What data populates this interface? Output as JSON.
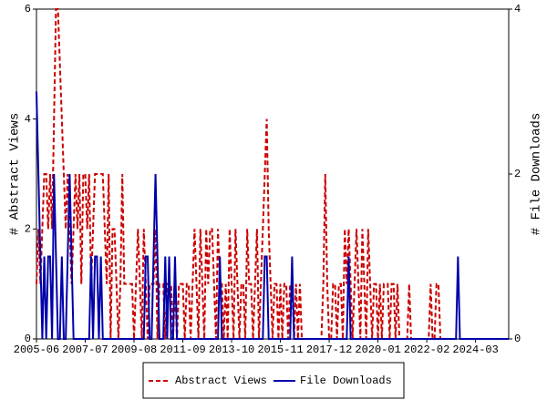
{
  "chart_data": {
    "type": "line",
    "categories": [
      "2005-06",
      null,
      null,
      null,
      null,
      null,
      null,
      null,
      null,
      null,
      null,
      null,
      null,
      null,
      null,
      null,
      null,
      null,
      null,
      null,
      null,
      null,
      null,
      null,
      null,
      "2007-07",
      null,
      null,
      null,
      null,
      null,
      null,
      null,
      null,
      null,
      null,
      null,
      null,
      null,
      null,
      null,
      null,
      null,
      null,
      null,
      null,
      null,
      null,
      null,
      null,
      "2009-08",
      null,
      null,
      null,
      null,
      null,
      null,
      null,
      null,
      null,
      null,
      null,
      null,
      null,
      null,
      null,
      null,
      null,
      null,
      null,
      null,
      null,
      null,
      null,
      null,
      "2011-09",
      null,
      null,
      null,
      null,
      null,
      null,
      null,
      null,
      null,
      null,
      null,
      null,
      null,
      null,
      null,
      null,
      null,
      null,
      null,
      null,
      null,
      null,
      null,
      null,
      "2013-10",
      null,
      null,
      null,
      null,
      null,
      null,
      null,
      null,
      null,
      null,
      null,
      null,
      null,
      null,
      null,
      null,
      null,
      null,
      null,
      null,
      null,
      null,
      null,
      null,
      "2015-11",
      null,
      null,
      null,
      null,
      null,
      null,
      null,
      null,
      null,
      null,
      null,
      null,
      null,
      null,
      null,
      null,
      null,
      null,
      null,
      null,
      null,
      null,
      null,
      null,
      "2017-12",
      null,
      null,
      null,
      null,
      null,
      null,
      null,
      null,
      null,
      null,
      null,
      null,
      null,
      null,
      null,
      null,
      null,
      null,
      null,
      null,
      null,
      null,
      null,
      null,
      "2020-01",
      null,
      null,
      null,
      null,
      null,
      null,
      null,
      null,
      null,
      null,
      null,
      null,
      null,
      null,
      null,
      null,
      null,
      null,
      null,
      null,
      null,
      null,
      null,
      null,
      "2022-02",
      null,
      null,
      null,
      null,
      null,
      null,
      null,
      null,
      null,
      null,
      null,
      null,
      null,
      null,
      null,
      null,
      null,
      null,
      null,
      null,
      null,
      null,
      null,
      null,
      "2024-03",
      null,
      null,
      null,
      null,
      null,
      null,
      null,
      null,
      null,
      null,
      null,
      null,
      null,
      null,
      null,
      null,
      null
    ],
    "series": [
      {
        "name": "Abstract Views",
        "color": "#cc0000",
        "axis": "y",
        "dashed": true,
        "values": [
          1,
          2,
          1,
          2,
          3,
          3,
          2,
          3,
          2,
          4,
          6,
          6,
          5,
          4,
          3,
          2,
          3,
          2,
          1,
          2,
          3,
          2,
          3,
          1,
          3,
          3,
          2,
          3,
          1,
          2,
          3,
          3,
          3,
          3,
          3,
          2,
          1,
          3,
          0,
          2,
          2,
          1,
          0,
          1,
          3,
          1,
          1,
          1,
          1,
          1,
          0,
          1,
          2,
          1,
          0,
          2,
          1,
          0,
          1,
          1,
          1,
          2,
          0,
          1,
          1,
          1,
          0,
          1,
          1,
          1,
          0,
          1,
          0,
          1,
          1,
          1,
          0,
          1,
          1,
          0,
          1,
          2,
          1,
          0,
          2,
          1,
          0,
          2,
          1,
          2,
          2,
          1,
          0,
          2,
          1,
          1,
          0,
          1,
          0,
          2,
          1,
          0,
          2,
          1,
          0,
          1,
          1,
          0,
          2,
          1,
          1,
          0,
          1,
          2,
          0,
          1,
          2,
          3,
          4,
          2,
          1,
          0,
          1,
          1,
          0,
          1,
          0,
          1,
          1,
          0,
          1,
          1,
          0,
          1,
          0,
          1,
          0,
          0,
          0,
          0,
          0,
          0,
          0,
          0,
          0,
          0,
          0,
          1,
          3,
          1,
          0,
          0,
          1,
          1,
          0,
          1,
          1,
          0,
          2,
          1,
          2,
          1,
          0,
          1,
          2,
          1,
          0,
          2,
          1,
          0,
          2,
          1,
          0,
          1,
          1,
          0,
          1,
          0,
          1,
          1,
          1,
          0,
          1,
          1,
          0,
          1,
          0,
          0,
          0,
          0,
          0,
          1,
          0,
          0,
          0,
          0,
          0,
          0,
          0,
          0,
          0,
          0,
          1,
          0,
          0,
          1,
          1,
          0,
          0,
          0,
          0,
          0,
          0,
          0,
          0,
          0,
          0,
          0,
          0,
          0,
          0,
          0,
          0,
          0,
          0,
          0,
          0,
          0,
          0,
          0,
          0,
          0,
          0,
          0,
          0,
          0,
          0,
          0,
          0,
          0,
          0,
          0,
          0
        ]
      },
      {
        "name": "File Downloads",
        "color": "#0000aa",
        "axis": "y2",
        "dashed": false,
        "values": [
          3,
          2,
          1,
          0,
          1,
          0,
          1,
          1,
          0,
          2,
          1,
          0,
          0,
          1,
          0,
          0,
          1,
          2,
          1,
          0,
          0,
          0,
          0,
          0,
          0,
          0,
          0,
          0,
          1,
          0,
          1,
          1,
          0,
          1,
          0,
          0,
          0,
          0,
          0,
          0,
          0,
          0,
          0,
          0,
          0,
          0,
          0,
          0,
          0,
          0,
          0,
          0,
          0,
          0,
          0,
          0,
          1,
          1,
          0,
          0,
          1,
          2,
          1,
          0,
          0,
          0,
          1,
          0,
          1,
          0,
          0,
          1,
          0,
          0,
          0,
          0,
          0,
          0,
          0,
          0,
          0,
          0,
          0,
          0,
          0,
          0,
          0,
          0,
          0,
          0,
          0,
          0,
          0,
          0,
          1,
          0,
          0,
          0,
          0,
          0,
          0,
          0,
          0,
          0,
          0,
          0,
          0,
          0,
          0,
          0,
          0,
          0,
          0,
          0,
          0,
          0,
          0,
          1,
          1,
          0,
          0,
          0,
          0,
          0,
          0,
          0,
          0,
          0,
          0,
          0,
          0,
          1,
          0,
          0,
          0,
          0,
          0,
          0,
          0,
          0,
          0,
          0,
          0,
          0,
          0,
          0,
          0,
          0,
          0,
          0,
          0,
          0,
          0,
          0,
          0,
          0,
          0,
          0,
          0,
          0,
          1,
          0,
          0,
          0,
          0,
          0,
          0,
          0,
          0,
          0,
          0,
          0,
          0,
          0,
          0,
          0,
          0,
          0,
          0,
          0,
          0,
          0,
          0,
          0,
          0,
          0,
          0,
          0,
          0,
          0,
          0,
          0,
          0,
          0,
          0,
          0,
          0,
          0,
          0,
          0,
          0,
          0,
          0,
          0,
          0,
          0,
          0,
          0,
          0,
          0,
          0,
          0,
          0,
          0,
          0,
          0,
          1,
          0,
          0,
          0,
          0,
          0,
          0,
          0,
          0,
          0,
          0,
          0,
          0,
          0,
          0,
          0,
          0,
          0,
          0,
          0,
          0,
          0,
          0,
          0,
          0,
          0,
          0
        ]
      }
    ],
    "ylabel": "# Abstract Views",
    "y2label": "# File Downloads",
    "ylim": [
      0,
      6
    ],
    "yticks": [
      0,
      2,
      4,
      6
    ],
    "y2lim": [
      0,
      4
    ],
    "y2ticks": [
      0,
      2,
      4
    ],
    "legend": "bottom"
  }
}
